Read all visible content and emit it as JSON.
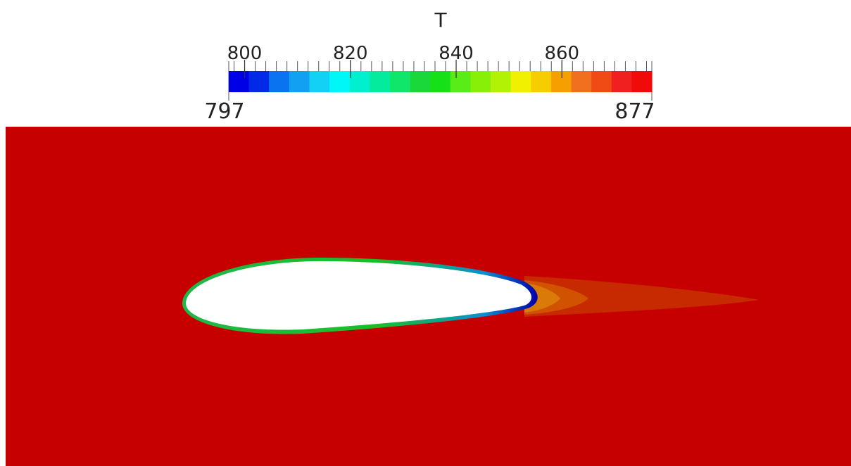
{
  "colorbar": {
    "title": "T",
    "min_label": "797",
    "max_label": "877",
    "range": [
      797,
      877
    ],
    "ticks": [
      "800",
      "820",
      "840",
      "860"
    ],
    "tick_values": [
      800,
      820,
      840,
      860
    ],
    "minor_tick_step": 2,
    "bands": [
      "#0000e6",
      "#0029e8",
      "#0a74f0",
      "#12a0f3",
      "#13d0f5",
      "#00f7f7",
      "#00f0cf",
      "#05eb9e",
      "#10e66a",
      "#1ad83a",
      "#18e018",
      "#5aec18",
      "#88f008",
      "#b2f205",
      "#f0f000",
      "#f5cd00",
      "#f5a000",
      "#f07020",
      "#f04a15",
      "#f02020",
      "#f00a0a"
    ]
  },
  "field": {
    "background_color": "#c60000",
    "wake_colors": [
      "#c82a00",
      "#d15200",
      "#da7a08"
    ],
    "surface_colors": [
      "#1fb84a",
      "#18c026",
      "#0a8fd0",
      "#0000aa"
    ]
  }
}
